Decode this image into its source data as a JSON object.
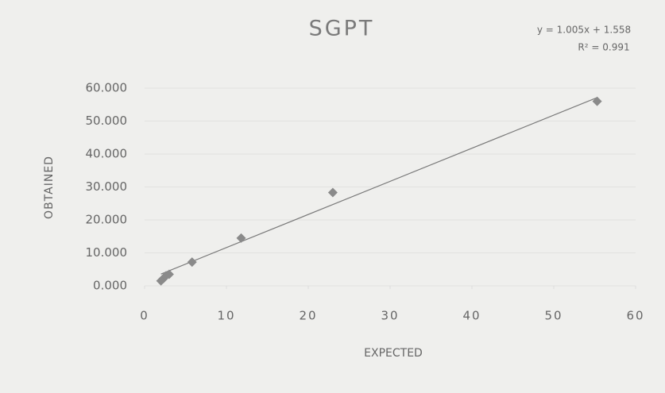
{
  "chart_data": {
    "type": "scatter",
    "title": "SGPT",
    "x_label": "EXPECTED",
    "y_label": "OBTAINED",
    "series": [
      {
        "name": "SGPT",
        "color": "#8a8a8a",
        "x": [
          2.0,
          2.3,
          2.6,
          3.0,
          5.8,
          11.8,
          23.0,
          55.3
        ],
        "values": [
          1.5,
          2.2,
          3.0,
          3.5,
          7.2,
          14.5,
          28.3,
          56.0
        ]
      }
    ],
    "trendline": {
      "slope": 1.005,
      "intercept": 1.558,
      "color": "#7a7a7a",
      "equation": "y = 1.005x + 1.558",
      "r2_label": "R² = 0.991"
    },
    "xlim": [
      0,
      60
    ],
    "xticks": [
      0,
      10,
      20,
      30,
      40,
      50,
      60
    ],
    "ylim": [
      0,
      60
    ],
    "yticks": [
      {
        "value": 0,
        "label": "0.000"
      },
      {
        "value": 10,
        "label": "10.000"
      },
      {
        "value": 20,
        "label": "20.000"
      },
      {
        "value": 30,
        "label": "30.000"
      },
      {
        "value": 40,
        "label": "40.000"
      },
      {
        "value": 50,
        "label": "50.000"
      },
      {
        "value": 60,
        "label": "60.000"
      }
    ],
    "grid": true
  }
}
